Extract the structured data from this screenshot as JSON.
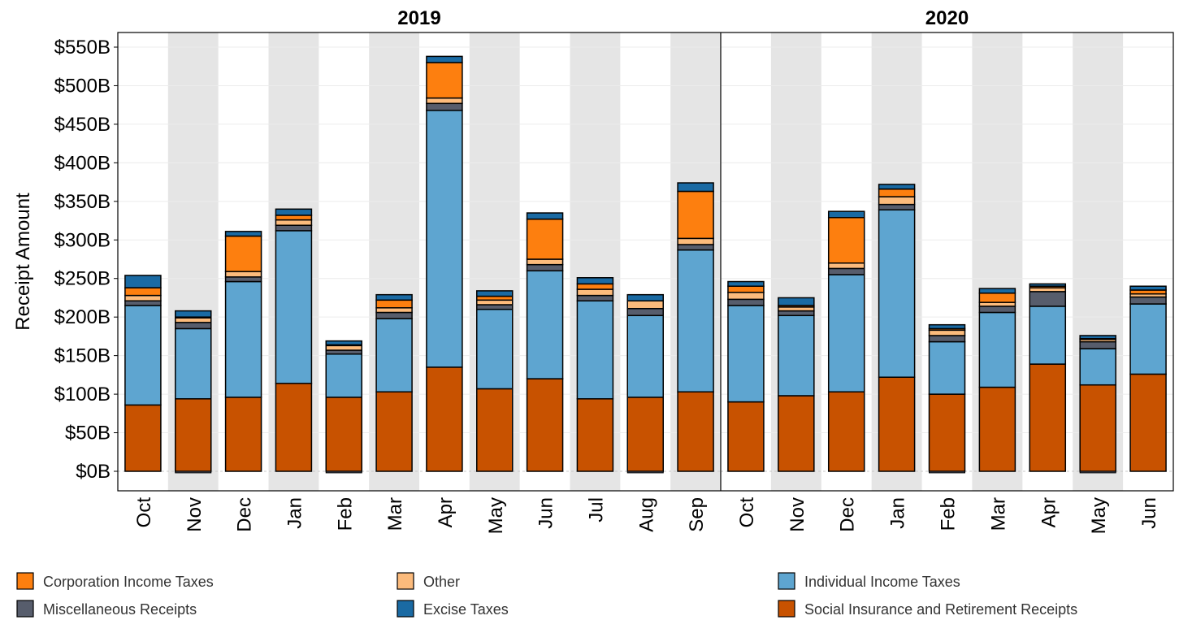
{
  "chart_data": {
    "type": "bar",
    "stacked": true,
    "ylabel": "Receipt Amount",
    "xlabel": "",
    "ylim": [
      -25,
      565
    ],
    "yticks": [
      0,
      50,
      100,
      150,
      200,
      250,
      300,
      350,
      400,
      450,
      500,
      550
    ],
    "ytick_labels": [
      "$0B",
      "$50B",
      "$100B",
      "$150B",
      "$200B",
      "$250B",
      "$300B",
      "$350B",
      "$400B",
      "$450B",
      "$500B",
      "$550B"
    ],
    "alternating_background": true,
    "legend_position": "bottom",
    "series_order": [
      "Social Insurance and Retirement Receipts",
      "Individual Income Taxes",
      "Miscellaneous Receipts",
      "Other",
      "Corporation Income Taxes",
      "Excise Taxes"
    ],
    "legend": [
      {
        "name": "Corporation Income Taxes",
        "color": "#fd7f0f"
      },
      {
        "name": "Other",
        "color": "#fcbb7c"
      },
      {
        "name": "Individual Income Taxes",
        "color": "#5ea5d0"
      },
      {
        "name": "Miscellaneous Receipts",
        "color": "#575d6c"
      },
      {
        "name": "Excise Taxes",
        "color": "#1a6aa3"
      },
      {
        "name": "Social Insurance and Retirement Receipts",
        "color": "#c85200"
      }
    ],
    "panels": [
      {
        "title": "2019",
        "categories": [
          "Oct",
          "Nov",
          "Dec",
          "Jan",
          "Feb",
          "Mar",
          "Apr",
          "May",
          "Jun",
          "Jul",
          "Aug",
          "Sep"
        ],
        "series": [
          {
            "name": "Social Insurance and Retirement Receipts",
            "values": [
              86,
              94,
              96,
              114,
              96,
              103,
              135,
              107,
              120,
              94,
              96,
              103
            ]
          },
          {
            "name": "Individual Income Taxes",
            "values": [
              129,
              91,
              150,
              198,
              56,
              95,
              333,
              103,
              140,
              127,
              106,
              184
            ]
          },
          {
            "name": "Miscellaneous Receipts",
            "values": [
              6,
              8,
              6,
              7,
              5,
              8,
              9,
              6,
              8,
              7,
              9,
              7
            ]
          },
          {
            "name": "Other",
            "values": [
              7,
              6,
              7,
              7,
              6,
              6,
              7,
              6,
              7,
              8,
              10,
              8
            ]
          },
          {
            "name": "Corporation Income Taxes",
            "values": [
              10,
              1,
              46,
              6,
              1,
              10,
              46,
              5,
              52,
              7,
              0,
              61
            ]
          },
          {
            "name": "Excise Taxes",
            "values": [
              16,
              8,
              6,
              8,
              5,
              7,
              8,
              7,
              8,
              8,
              8,
              11
            ]
          }
        ],
        "negatives": [
          0,
          -2,
          0,
          0,
          -2,
          0,
          0,
          0,
          0,
          0,
          -2,
          0
        ]
      },
      {
        "title": "2020",
        "categories": [
          "Oct",
          "Nov",
          "Dec",
          "Jan",
          "Feb",
          "Mar",
          "Apr",
          "May",
          "Jun"
        ],
        "series": [
          {
            "name": "Social Insurance and Retirement Receipts",
            "values": [
              90,
              98,
              103,
              122,
              100,
              109,
              139,
              112,
              126
            ]
          },
          {
            "name": "Individual Income Taxes",
            "values": [
              125,
              104,
              152,
              217,
              68,
              97,
              75,
              47,
              91
            ]
          },
          {
            "name": "Miscellaneous Receipts",
            "values": [
              8,
              6,
              8,
              7,
              8,
              8,
              19,
              9,
              9
            ]
          },
          {
            "name": "Other",
            "values": [
              9,
              5,
              7,
              10,
              7,
              5,
              5,
              3,
              4
            ]
          },
          {
            "name": "Corporation Income Taxes",
            "values": [
              8,
              2,
              59,
              10,
              2,
              12,
              2,
              1,
              5
            ]
          },
          {
            "name": "Excise Taxes",
            "values": [
              6,
              10,
              8,
              6,
              5,
              6,
              3,
              4,
              5
            ]
          }
        ],
        "negatives": [
          0,
          0,
          0,
          0,
          -2,
          0,
          0,
          -2,
          0
        ]
      }
    ]
  }
}
